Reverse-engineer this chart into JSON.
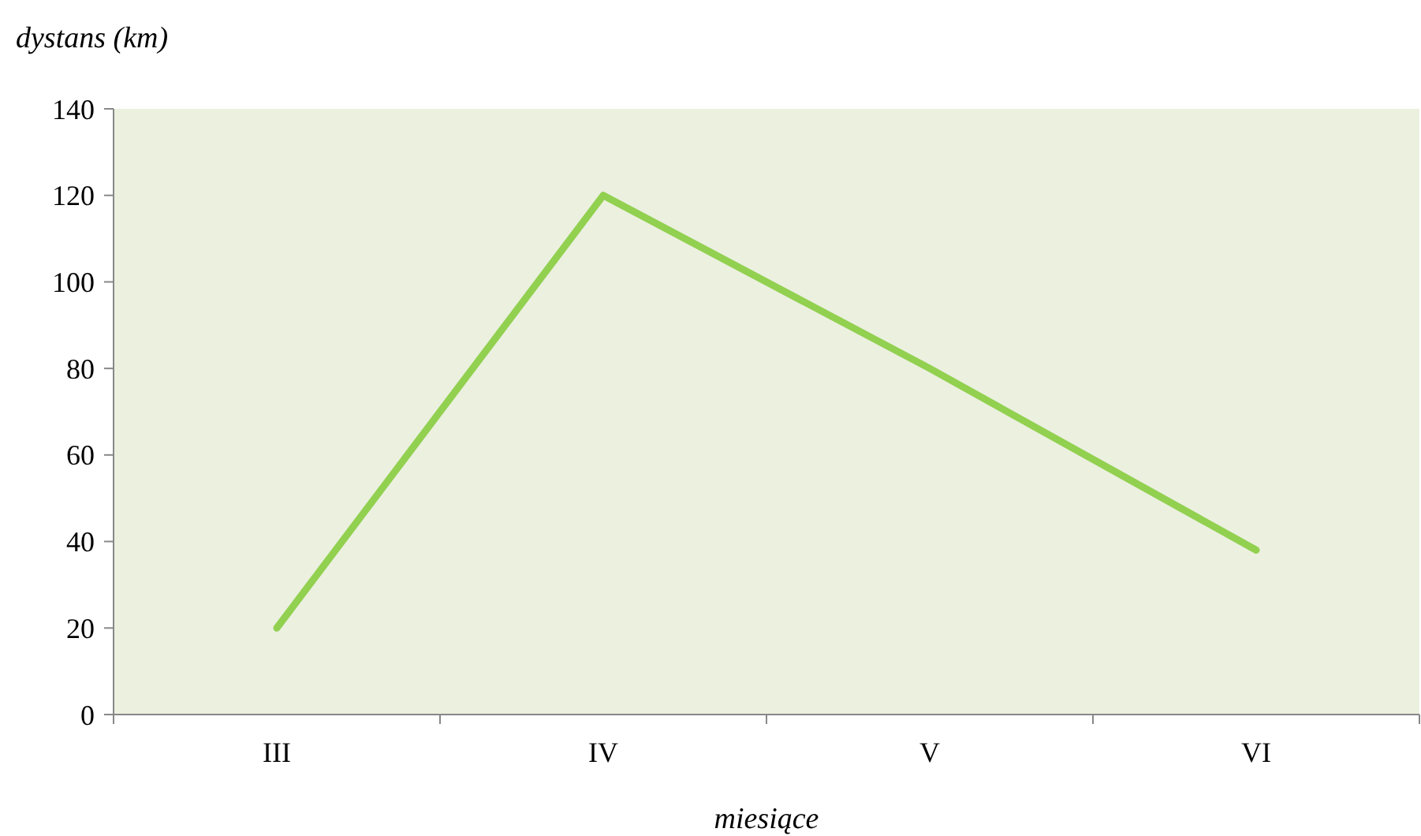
{
  "chart_data": {
    "type": "line",
    "xlabel": "miesiące",
    "ylabel": "dystans (km)",
    "categories": [
      "III",
      "IV",
      "V",
      "VI"
    ],
    "series": [
      {
        "color": "#92d050",
        "values": [
          20,
          120,
          80,
          38
        ]
      }
    ],
    "ylim": [
      0,
      140
    ],
    "yticks": [
      0,
      20,
      40,
      60,
      80,
      100,
      120,
      140
    ],
    "grid": false,
    "marker": "none",
    "line_style": "solid"
  }
}
